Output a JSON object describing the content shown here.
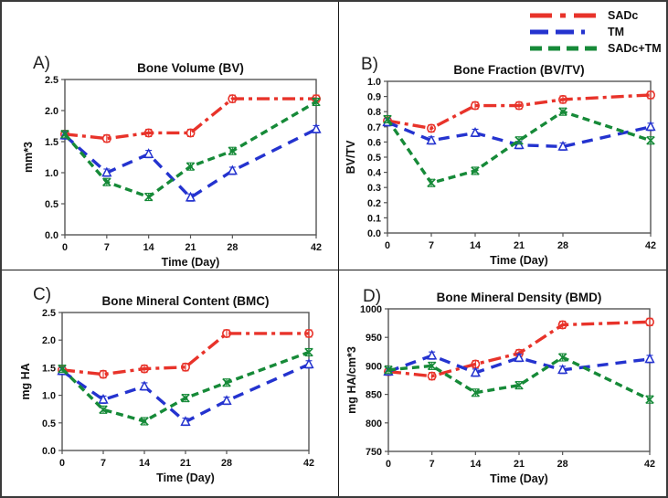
{
  "legend": {
    "items": [
      {
        "label": "SADc",
        "color": "#E8332A",
        "dash": "dashdot",
        "marker": "circle"
      },
      {
        "label": "TM",
        "color": "#2433CF",
        "dash": "dash",
        "marker": "triangle"
      },
      {
        "label": "SADc+TM",
        "color": "#168A38",
        "dash": "shortdash",
        "marker": "x"
      }
    ]
  },
  "chart_data": [
    {
      "type": "line",
      "panel": "A)",
      "title": "Bone Volume (BV)",
      "xlabel": "Time (Day)",
      "ylabel": "mm*3",
      "x": [
        0,
        7,
        14,
        21,
        28,
        42
      ],
      "xlim": [
        0,
        42
      ],
      "ylim": [
        0,
        2.5
      ],
      "ytick_step": 0.5,
      "y_decimals": 1,
      "grid": false,
      "series": [
        {
          "name": "SADc",
          "color": "#E8332A",
          "dash": "dashdot",
          "marker": "circle",
          "values": [
            1.62,
            1.55,
            1.64,
            1.64,
            2.19,
            2.19
          ]
        },
        {
          "name": "TM",
          "color": "#2433CF",
          "dash": "dash",
          "marker": "triangle",
          "values": [
            1.6,
            1.0,
            1.3,
            0.6,
            1.03,
            1.7
          ]
        },
        {
          "name": "SADc+TM",
          "color": "#168A38",
          "dash": "shortdash",
          "marker": "x",
          "values": [
            1.62,
            0.85,
            0.61,
            1.1,
            1.35,
            2.14
          ]
        }
      ]
    },
    {
      "type": "line",
      "panel": "B)",
      "title": "Bone Fraction (BV/TV)",
      "xlabel": "Time (Day)",
      "ylabel": "BV/TV",
      "x": [
        0,
        7,
        14,
        21,
        28,
        42
      ],
      "xlim": [
        0,
        42
      ],
      "ylim": [
        0,
        1.0
      ],
      "ytick_step": 0.1,
      "y_decimals": 1,
      "grid": false,
      "series": [
        {
          "name": "SADc",
          "color": "#E8332A",
          "dash": "dashdot",
          "marker": "circle",
          "values": [
            0.74,
            0.69,
            0.84,
            0.84,
            0.88,
            0.91
          ]
        },
        {
          "name": "TM",
          "color": "#2433CF",
          "dash": "dash",
          "marker": "triangle",
          "values": [
            0.73,
            0.61,
            0.66,
            0.58,
            0.57,
            0.7
          ]
        },
        {
          "name": "SADc+TM",
          "color": "#168A38",
          "dash": "shortdash",
          "marker": "x",
          "values": [
            0.75,
            0.33,
            0.41,
            0.61,
            0.8,
            0.61
          ]
        }
      ]
    },
    {
      "type": "line",
      "panel": "C)",
      "title": "Bone Mineral Content (BMC)",
      "xlabel": "Time (Day)",
      "ylabel": "mg HA",
      "x": [
        0,
        7,
        14,
        21,
        28,
        42
      ],
      "xlim": [
        0,
        42
      ],
      "ylim": [
        0,
        2.5
      ],
      "ytick_step": 0.5,
      "y_decimals": 1,
      "grid": false,
      "series": [
        {
          "name": "SADc",
          "color": "#E8332A",
          "dash": "dashdot",
          "marker": "circle",
          "values": [
            1.46,
            1.38,
            1.48,
            1.51,
            2.12,
            2.12
          ]
        },
        {
          "name": "TM",
          "color": "#2433CF",
          "dash": "dash",
          "marker": "triangle",
          "values": [
            1.44,
            0.92,
            1.16,
            0.52,
            0.9,
            1.56
          ]
        },
        {
          "name": "SADc+TM",
          "color": "#168A38",
          "dash": "shortdash",
          "marker": "x",
          "values": [
            1.48,
            0.74,
            0.53,
            0.95,
            1.23,
            1.78
          ]
        }
      ]
    },
    {
      "type": "line",
      "panel": "D)",
      "title": "Bone Mineral Density (BMD)",
      "xlabel": "Time (Day)",
      "ylabel": "mg HA/cm*3",
      "x": [
        0,
        7,
        14,
        21,
        28,
        42
      ],
      "xlim": [
        0,
        42
      ],
      "ylim": [
        750,
        1000
      ],
      "ytick_step": 50,
      "y_decimals": 0,
      "grid": false,
      "series": [
        {
          "name": "SADc",
          "color": "#E8332A",
          "dash": "dashdot",
          "marker": "circle",
          "values": [
            890,
            882,
            903,
            922,
            972,
            977
          ]
        },
        {
          "name": "TM",
          "color": "#2433CF",
          "dash": "dash",
          "marker": "triangle",
          "values": [
            890,
            918,
            888,
            914,
            893,
            912
          ]
        },
        {
          "name": "SADc+TM",
          "color": "#168A38",
          "dash": "shortdash",
          "marker": "x",
          "values": [
            893,
            900,
            853,
            866,
            915,
            841
          ]
        }
      ]
    }
  ]
}
